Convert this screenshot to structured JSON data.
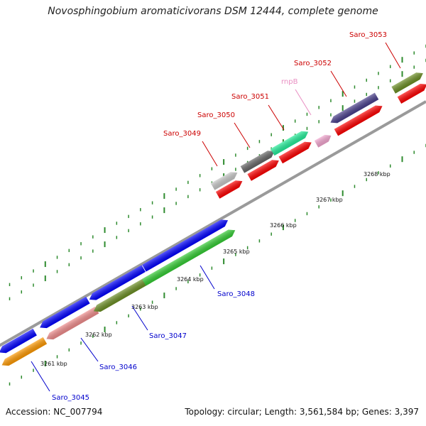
{
  "title": "Novosphingobium aromaticivorans DSM 12444, complete genome",
  "footer": {
    "accession": "Accession: NC_007794",
    "summary": "Topology: circular; Length: 3,561,584 bp; Genes: 3,397"
  },
  "ticks": [
    {
      "label": "3261 kbp"
    },
    {
      "label": "3262 kbp"
    },
    {
      "label": "3263 kbp"
    },
    {
      "label": "3264 kbp"
    },
    {
      "label": "3265 kbp"
    },
    {
      "label": "3266 kbp"
    },
    {
      "label": "3267 kbp"
    },
    {
      "label": "3268 kbp"
    }
  ],
  "colors": {
    "backbone": "#9a9a9a",
    "tick": "#2e8b2e",
    "label_upper": "#cc0000",
    "label_lower": "#0000cc",
    "label_rnpB": "#e98ec2"
  },
  "genes": [
    {
      "name": "Saro_3045",
      "strand": "lower",
      "color": "#ff9900",
      "direction": "reverse"
    },
    {
      "name": "Saro_3046",
      "strand": "lower",
      "color": "#f08c8c",
      "direction": "reverse"
    },
    {
      "name": "Saro_3047",
      "strand": "lower",
      "color": "#6b8e23",
      "direction": "reverse"
    },
    {
      "name": "Saro_3048",
      "strand": "lower",
      "color": "#33cc33",
      "direction": "forward"
    },
    {
      "name": "Saro_3049",
      "strand": "upper",
      "color": "#c8c8c8",
      "direction": "forward"
    },
    {
      "name": "Saro_3050",
      "strand": "upper",
      "color": "#666666",
      "direction": "forward"
    },
    {
      "name": "Saro_3051",
      "strand": "upper",
      "color": "#22ee99",
      "direction": "forward"
    },
    {
      "name": "rnpB",
      "strand": "upper",
      "color": "#f4a6d0",
      "direction": "forward"
    },
    {
      "name": "Saro_3052",
      "strand": "upper",
      "color": "#483d8b",
      "direction": "reverse"
    },
    {
      "name": "Saro_3053",
      "strand": "upper",
      "color": "#6b8e23",
      "direction": "forward"
    }
  ],
  "cds_color": "#ff0000",
  "blue_cds_color": "#0000ff"
}
